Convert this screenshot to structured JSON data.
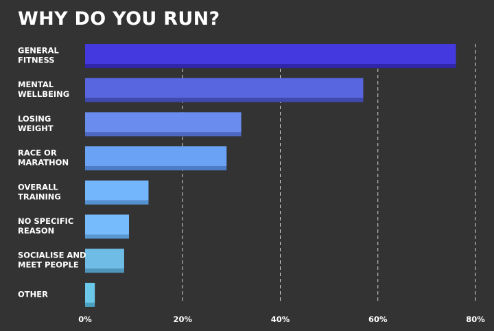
{
  "chart_data": {
    "type": "bar",
    "orientation": "horizontal",
    "title": "WHY DO YOU RUN?",
    "xlabel": "",
    "ylabel": "",
    "xlim": [
      0,
      80
    ],
    "x_ticks": [
      "0%",
      "20%",
      "40%",
      "60%",
      "80%"
    ],
    "grid": true,
    "categories": [
      [
        "GENERAL",
        "FITNESS"
      ],
      [
        "MENTAL",
        "WELLBEING"
      ],
      [
        "LOSING",
        "WEIGHT"
      ],
      [
        "RACE OR",
        "MARATHON"
      ],
      [
        "OVERALL",
        "TRAINING"
      ],
      [
        "NO SPECIFIC",
        "REASON"
      ],
      [
        "SOCIALISE AND",
        "MEET PEOPLE"
      ],
      [
        "OTHER"
      ]
    ],
    "values": [
      76,
      57,
      32,
      29,
      13,
      9,
      8,
      2
    ],
    "colors": [
      "#4438df",
      "#5866e0",
      "#6a8cee",
      "#6aa3f5",
      "#74b6fc",
      "#76bcfd",
      "#6fbde6",
      "#6cc8e8"
    ],
    "shadow_colors": [
      "#2f27a8",
      "#4049b0",
      "#4d68c0",
      "#4d7cc8",
      "#5590d0",
      "#5996d2",
      "#4f96bd",
      "#4aa0c0"
    ]
  }
}
